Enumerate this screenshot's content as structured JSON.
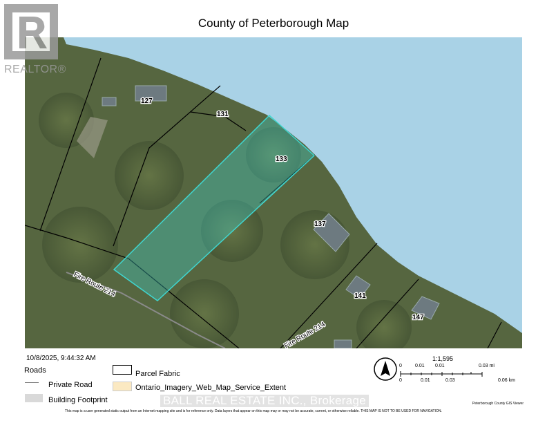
{
  "title": "County of Peterborough Map",
  "logo": {
    "text": "REALTOR®",
    "icon": "realtor-r-logo"
  },
  "map": {
    "colors": {
      "water": "#a9d2e6",
      "highlight": "#3fd6d0",
      "forest": "#4d5e3a",
      "parcel_line": "#000000"
    },
    "parcel_labels": [
      "127",
      "131",
      "133",
      "137",
      "141",
      "147"
    ],
    "road_labels": [
      "Fire Route 214",
      "Fire Route 214"
    ]
  },
  "timestamp": "10/8/2025, 9:44:32 AM",
  "legend": {
    "roads_heading": "Roads",
    "items": [
      {
        "label": "Private Road",
        "symbol": "line",
        "color": "#808080"
      },
      {
        "label": "Building Footprint",
        "symbol": "fill",
        "color": "#d9d9d9"
      },
      {
        "label": "Parcel Fabric",
        "symbol": "outline",
        "color": "#000000"
      },
      {
        "label": "Ontario_Imagery_Web_Map_Service_Extent",
        "symbol": "fill",
        "color": "#fbe9c2"
      }
    ]
  },
  "watermark": "BALL REAL ESTATE INC., Brokerage",
  "north_arrow": "north-arrow-icon",
  "scale": {
    "ratio": "1:1,595",
    "mi_labels": [
      "0",
      "0.01",
      "0.01",
      "0.03 mi"
    ],
    "km_labels": [
      "0",
      "0.01",
      "0.03",
      "0.06 km"
    ]
  },
  "credit": "Peterborough County GIS Viewer",
  "disclaimer": "This map is a user generated static output from an Internet mapping site and  is for reference only. Data layers that appear on this map may or may not be  accurate, current, or otherwise reliable. THIS MAP IS NOT TO BE USED FOR NAVIGATION."
}
